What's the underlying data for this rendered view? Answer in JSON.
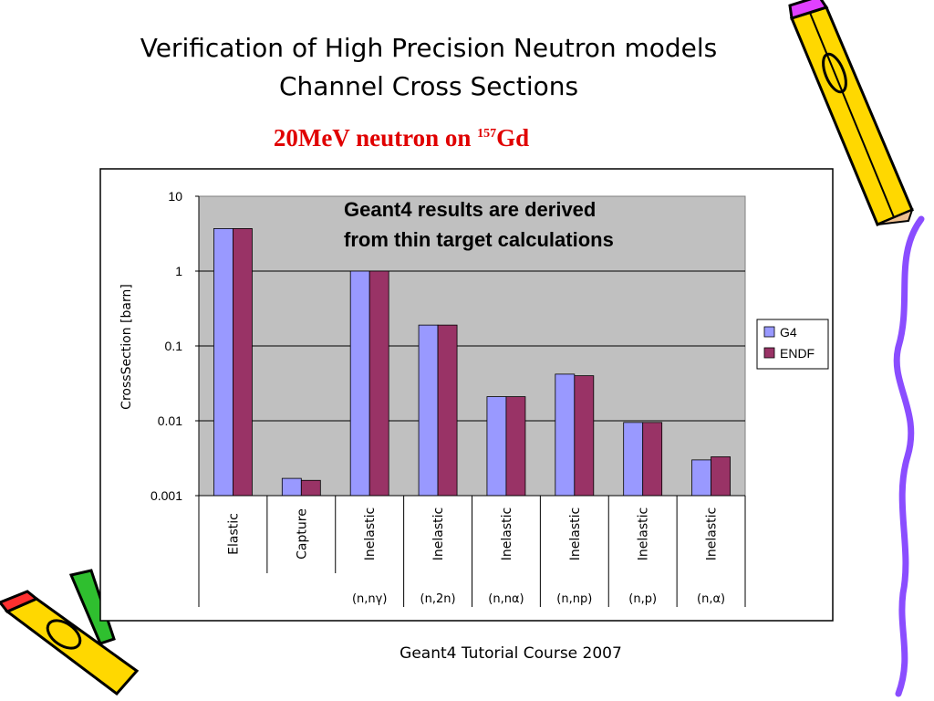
{
  "slide": {
    "title_line1": "Verification  of High Precision Neutron models",
    "title_line2": "Channel Cross Sections",
    "subtitle_main": "20MeV neutron on ",
    "subtitle_sup": "157",
    "subtitle_end": "Gd",
    "footer": "Geant4 Tutorial Course 2007"
  },
  "chart_data": {
    "type": "bar",
    "title": "",
    "ylabel": "CrossSection [barn]",
    "yscale": "log",
    "ylim": [
      0.001,
      10
    ],
    "yticks": [
      "10",
      "1",
      "0.1",
      "0.01",
      "0.001"
    ],
    "grid": true,
    "legend_position": "right",
    "annotation_line1": "Geant4 results are derived",
    "annotation_line2": "from thin target calculations",
    "categories": [
      "Elastic",
      "Capture",
      "Inelastic",
      "Inelastic",
      "Inelastic",
      "Inelastic",
      "Inelastic",
      "Inelastic"
    ],
    "subcategories": [
      "",
      "",
      "(n,nγ)",
      "(n,2n)",
      "(n,nα)",
      "(n,np)",
      "(n,p)",
      "(n,α)"
    ],
    "series": [
      {
        "name": "G4",
        "color": "#9999ff",
        "values": [
          3.7,
          0.0017,
          1.0,
          0.19,
          0.021,
          0.042,
          0.0095,
          0.003
        ]
      },
      {
        "name": "ENDF",
        "color": "#993366",
        "values": [
          3.7,
          0.0016,
          1.0,
          0.19,
          0.021,
          0.04,
          0.0095,
          0.0033
        ]
      }
    ],
    "plot_bg": "#c0c0c0"
  },
  "decor": {
    "pencil_icon_top": "pencil-icon",
    "pencil_icon_bottom": "pencil-icon",
    "squiggle_color": "#8a4dff"
  }
}
